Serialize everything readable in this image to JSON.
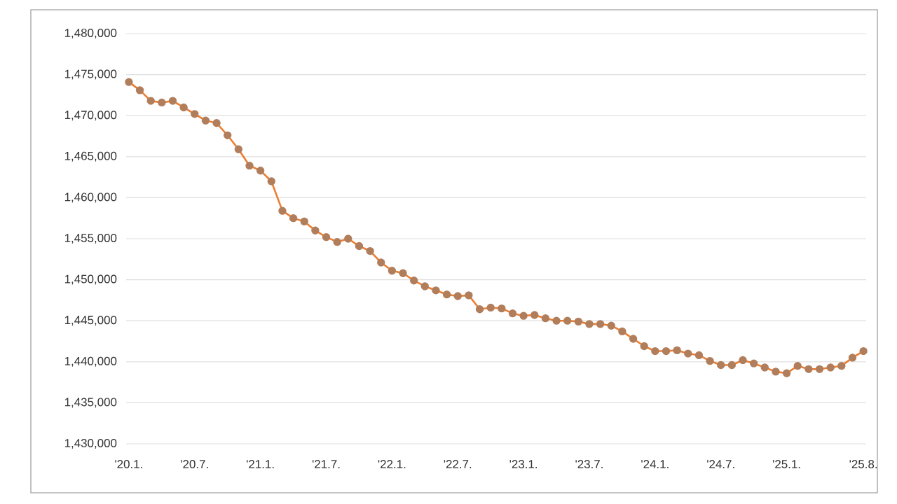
{
  "chart_data": {
    "type": "line",
    "categories": [
      "'20.1.",
      null,
      null,
      null,
      null,
      null,
      "'20.7.",
      null,
      null,
      null,
      null,
      null,
      "'21.1.",
      null,
      null,
      null,
      null,
      null,
      "'21.7.",
      null,
      null,
      null,
      null,
      null,
      "'22.1.",
      null,
      null,
      null,
      null,
      null,
      "'22.7.",
      null,
      null,
      null,
      null,
      null,
      "'23.1.",
      null,
      null,
      null,
      null,
      null,
      "'23.7.",
      null,
      null,
      null,
      null,
      null,
      "'24.1.",
      null,
      null,
      null,
      null,
      null,
      "'24.7.",
      null,
      null,
      null,
      null,
      null,
      "'25.1.",
      null,
      null,
      null,
      null,
      null,
      null,
      "'25.8."
    ],
    "series": [
      {
        "color": "#ed7d31",
        "values": [
          1474100,
          1473100,
          1471800,
          1471600,
          1471800,
          1471000,
          1470200,
          1469400,
          1469100,
          1467600,
          1465900,
          1463900,
          1463300,
          1462000,
          1458400,
          1457500,
          1457100,
          1456000,
          1455200,
          1454600,
          1455000,
          1454100,
          1453500,
          1452100,
          1451100,
          1450800,
          1449900,
          1449200,
          1448700,
          1448200,
          1448000,
          1448100,
          1446400,
          1446600,
          1446500,
          1445900,
          1445600,
          1445700,
          1445300,
          1445000,
          1445000,
          1444900,
          1444600,
          1444600,
          1444400,
          1443700,
          1442800,
          1441900,
          1441300,
          1441300,
          1441400,
          1441000,
          1440800,
          1440100,
          1439600,
          1439600,
          1440200,
          1439800,
          1439300,
          1438800,
          1438600,
          1439500,
          1439100,
          1439100,
          1439300,
          1439500,
          1440500,
          1441300
        ]
      }
    ],
    "ylim": [
      1430000,
      1480000
    ],
    "yticks": [
      {
        "value": 1430000,
        "label": "1,430,000"
      },
      {
        "value": 1435000,
        "label": "1,435,000"
      },
      {
        "value": 1440000,
        "label": "1,440,000"
      },
      {
        "value": 1445000,
        "label": "1,445,000"
      },
      {
        "value": 1450000,
        "label": "1,450,000"
      },
      {
        "value": 1455000,
        "label": "1,455,000"
      },
      {
        "value": 1460000,
        "label": "1,460,000"
      },
      {
        "value": 1465000,
        "label": "1,465,000"
      },
      {
        "value": 1470000,
        "label": "1,470,000"
      },
      {
        "value": 1475000,
        "label": "1,475,000"
      },
      {
        "value": 1480000,
        "label": "1,480,000"
      }
    ],
    "grid": "y",
    "marker": "circle",
    "line_style": "solid"
  }
}
